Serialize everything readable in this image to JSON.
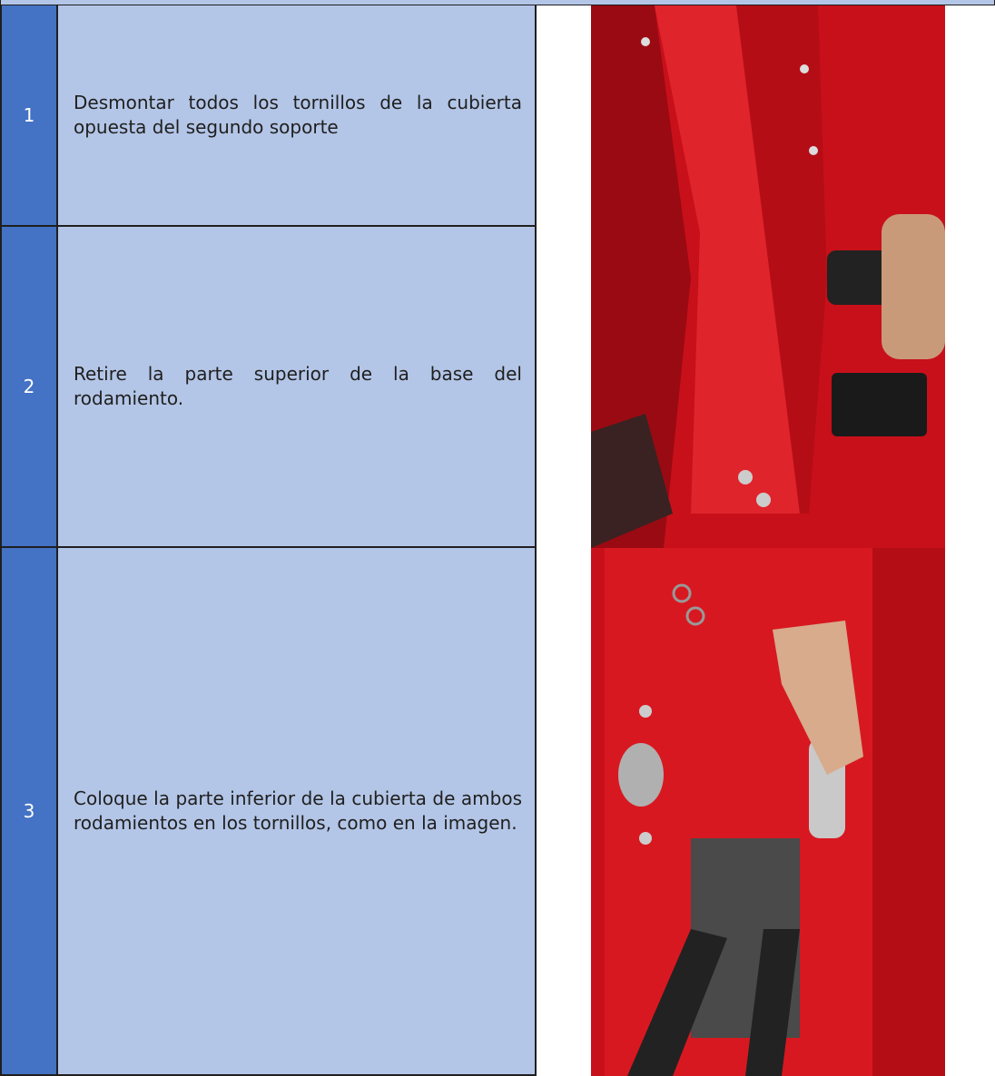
{
  "table": {
    "rows": [
      {
        "number": "1",
        "text": "Desmontar todos los tornillos de la cubierta opuesta del segundo soporte"
      },
      {
        "number": "2",
        "text": "Retire la parte superior de la base del rodamiento."
      },
      {
        "number": "3",
        "text": "Coloque la parte inferior de la cubierta de ambos rodamientos en los tornillos, como en la imagen."
      }
    ]
  }
}
